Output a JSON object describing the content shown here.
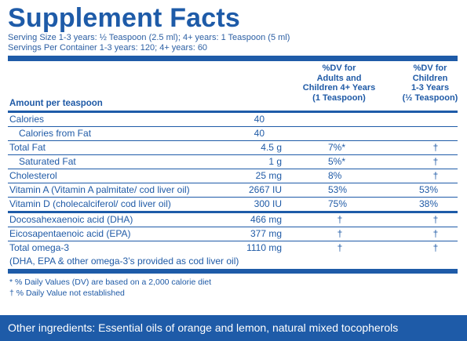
{
  "title": "Supplement Facts",
  "serving_size": "Serving Size 1-3 years: ½ Teaspoon (2.5 ml); 4+ years: 1 Teaspoon (5 ml)",
  "servings_per_container": "Servings Per Container 1-3 years: 120; 4+ years: 60",
  "header": {
    "amount_label": "Amount per teaspoon",
    "dv_adults": "%DV for\nAdults and\nChildren 4+ Years\n(1 Teaspoon)",
    "dv_children": "%DV for\nChildren\n1-3 Years\n(½ Teaspoon)"
  },
  "rows": [
    {
      "name": "Calories",
      "amount": "40",
      "dv_adults": "",
      "dv_children": ""
    },
    {
      "name": "Calories from Fat",
      "amount": "40",
      "dv_adults": "",
      "dv_children": ""
    },
    {
      "name": "Total Fat",
      "amount": "4.5 g",
      "dv_adults": "7%*",
      "dv_children": "†"
    },
    {
      "name": "Saturated Fat",
      "amount": "1 g",
      "dv_adults": "5%*",
      "dv_children": "†"
    },
    {
      "name": "Cholesterol",
      "amount": "25 mg",
      "dv_adults": "8%",
      "dv_children": "†"
    },
    {
      "name": "Vitamin A (Vitamin A palmitate/ cod liver oil)",
      "amount": "2667 IU",
      "dv_adults": "53%",
      "dv_children": "53%"
    },
    {
      "name": "Vitamin D (cholecalciferol/ cod liver oil)",
      "amount": "300 IU",
      "dv_adults": "75%",
      "dv_children": "38%"
    },
    {
      "name": "Docosahexaenoic acid (DHA)",
      "amount": "466 mg",
      "dv_adults": "†",
      "dv_children": "†"
    },
    {
      "name": "Eicosapentaenoic acid (EPA)",
      "amount": "377 mg",
      "dv_adults": "†",
      "dv_children": "†"
    },
    {
      "name": "Total omega-3",
      "amount": "1110 mg",
      "dv_adults": "†",
      "dv_children": "†"
    },
    {
      "name": "(DHA, EPA & other omega-3’s provided as cod liver oil)",
      "amount": "",
      "dv_adults": "",
      "dv_children": ""
    }
  ],
  "notes": {
    "dv_note": "* % Daily Values (DV) are based on a 2,000 calorie diet",
    "dagger_note": "† % Daily Value not established"
  },
  "footer": "Other ingredients: Essential oils of orange and lemon, natural mixed tocopherols"
}
